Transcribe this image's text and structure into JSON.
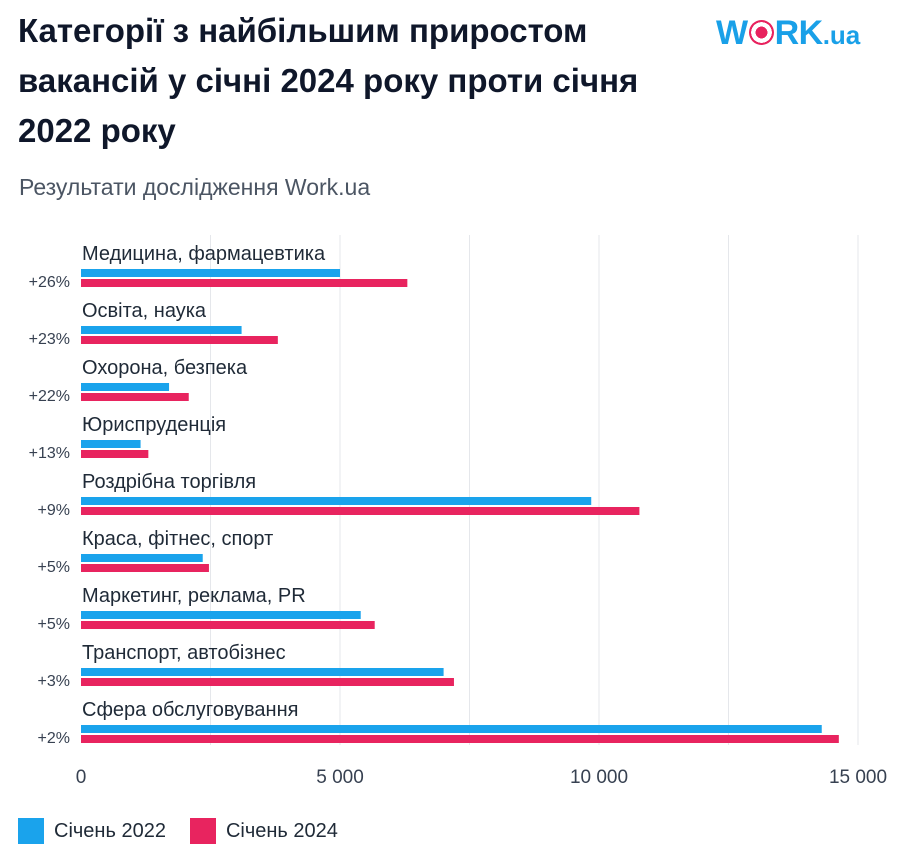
{
  "header": {
    "title": "Категорії з найбільшим приростом вакансій у січні 2024 року проти січня 2022 року",
    "subtitle": "Результати дослідження Work.ua",
    "logo_text": "WORK.ua"
  },
  "colors": {
    "series_2022": "#1aa3ec",
    "series_2024": "#e8245f",
    "grid": "#e5e7eb"
  },
  "legend": [
    {
      "label": "Січень 2022",
      "color": "#1aa3ec"
    },
    {
      "label": "Січень 2024",
      "color": "#e8245f"
    }
  ],
  "chart_data": {
    "type": "bar",
    "orientation": "horizontal",
    "categories": [
      "Медицина, фармацевтика",
      "Освіта, наука",
      "Охорона, безпека",
      "Юриспруденція",
      "Роздрібна торгівля",
      "Краса, фітнес, спорт",
      "Маркетинг, реклама, PR",
      "Транспорт, автобізнес",
      "Сфера обслуговування"
    ],
    "growth_labels": [
      "+26%",
      "+23%",
      "+22%",
      "+13%",
      "+9%",
      "+5%",
      "+5%",
      "+3%",
      "+2%"
    ],
    "series": [
      {
        "name": "Січень 2022",
        "values": [
          5000,
          3100,
          1700,
          1150,
          9850,
          2350,
          5400,
          7000,
          14300
        ]
      },
      {
        "name": "Січень 2024",
        "values": [
          6300,
          3800,
          2080,
          1300,
          10780,
          2470,
          5670,
          7200,
          14630
        ]
      }
    ],
    "xlim": [
      0,
      15000
    ],
    "xticks": [
      0,
      5000,
      10000,
      15000
    ],
    "xtick_labels": [
      "0",
      "5 000",
      "10 000",
      "15 000"
    ],
    "grid": true,
    "legend_position": "bottom-left"
  }
}
